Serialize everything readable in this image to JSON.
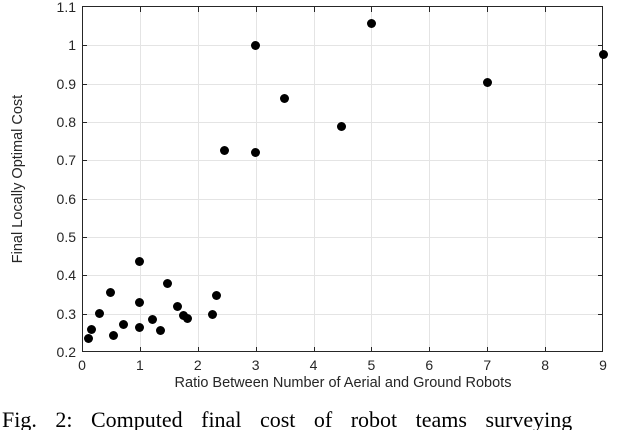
{
  "figure": {
    "caption": "Fig. 2: Computed final cost of robot teams surveying"
  },
  "chart_data": {
    "type": "scatter",
    "title": "",
    "xlabel": "Ratio Between Number of Aerial and Ground Robots",
    "ylabel": "Final Locally Optimal Cost",
    "xlim": [
      0,
      9
    ],
    "ylim": [
      0.2,
      1.1
    ],
    "xticks": [
      0,
      1,
      2,
      3,
      4,
      5,
      6,
      7,
      8,
      9
    ],
    "xtick_labels": [
      "0",
      "1",
      "2",
      "3",
      "4",
      "5",
      "6",
      "7",
      "8",
      "9"
    ],
    "yticks": [
      0.2,
      0.3,
      0.4,
      0.5,
      0.6,
      0.7,
      0.8,
      0.9,
      1.0,
      1.1
    ],
    "ytick_labels": [
      "0.2",
      "0.3",
      "0.4",
      "0.5",
      "0.6",
      "0.7",
      "0.8",
      "0.9",
      "1",
      "1.1"
    ],
    "grid": true,
    "legend_position": "none",
    "marker": "filled-circle",
    "series": [
      {
        "name": "final-locally-optimal-cost",
        "points": [
          [
            0.12,
            0.234
          ],
          [
            0.17,
            0.26
          ],
          [
            0.31,
            0.301
          ],
          [
            0.5,
            0.356
          ],
          [
            0.55,
            0.242
          ],
          [
            0.72,
            0.272
          ],
          [
            1.0,
            0.264
          ],
          [
            1.0,
            0.33
          ],
          [
            1.0,
            0.435
          ],
          [
            1.22,
            0.286
          ],
          [
            1.35,
            0.256
          ],
          [
            1.48,
            0.38
          ],
          [
            1.65,
            0.318
          ],
          [
            1.76,
            0.296
          ],
          [
            1.82,
            0.287
          ],
          [
            2.25,
            0.298
          ],
          [
            2.33,
            0.347
          ],
          [
            2.47,
            0.725
          ],
          [
            3.0,
            0.72
          ],
          [
            3.0,
            1.0
          ],
          [
            3.5,
            0.862
          ],
          [
            4.49,
            0.787
          ],
          [
            5.0,
            1.056
          ],
          [
            7.0,
            0.902
          ],
          [
            9.0,
            0.976
          ]
        ]
      }
    ]
  },
  "colors": {
    "marker": "#000000",
    "spine": "#262626",
    "grid": "#e4e4e4",
    "text": "#262626"
  }
}
